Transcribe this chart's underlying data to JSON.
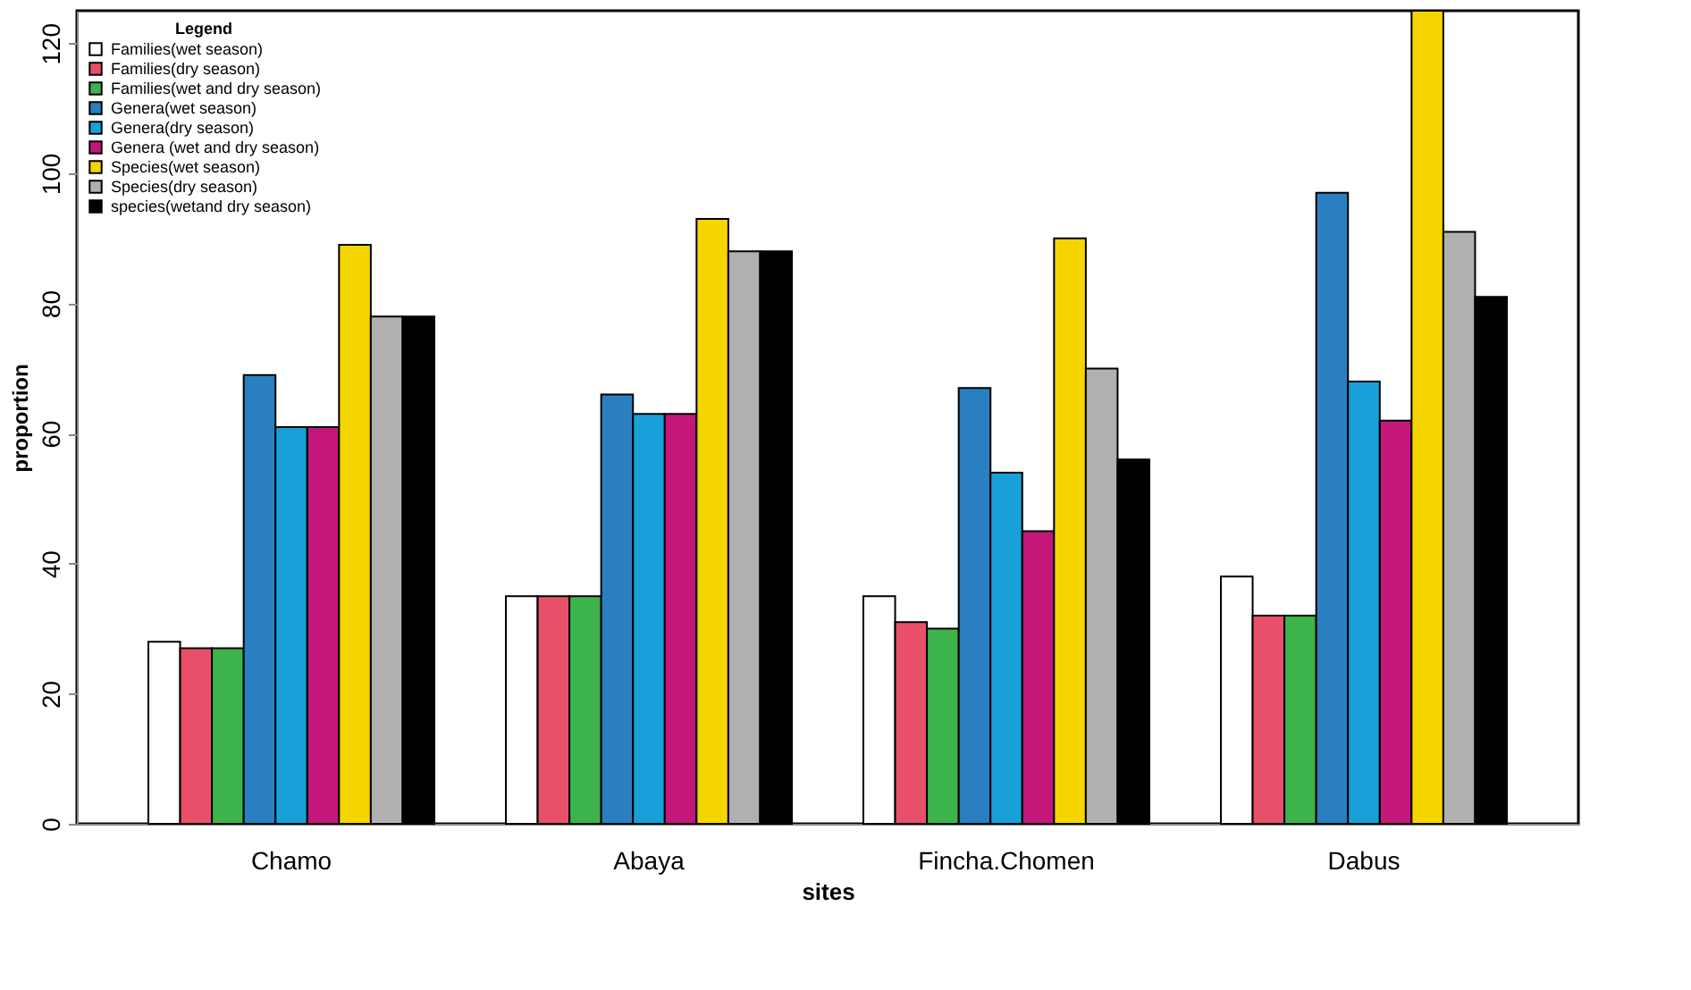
{
  "chart_data": {
    "type": "bar",
    "xlabel": "sites",
    "ylabel": "proportion",
    "legend_title": "Legend",
    "legend": "top left",
    "grid": false,
    "categories": [
      "Chamo",
      "Abaya",
      "Fincha.Chomen",
      "Dabus"
    ],
    "ylim": [
      0,
      125
    ],
    "yticks": [
      0,
      20,
      40,
      60,
      80,
      100,
      120
    ],
    "series": [
      {
        "name": "Families(wet season)",
        "color": "#ffffff",
        "values": [
          28,
          35,
          35,
          38
        ]
      },
      {
        "name": "Families(dry season)",
        "color": "#e8506a",
        "values": [
          27,
          35,
          31,
          32
        ]
      },
      {
        "name": "Families(wet and dry season)",
        "color": "#3cb44b",
        "values": [
          27,
          35,
          30,
          32
        ]
      },
      {
        "name": "Genera(wet season)",
        "color": "#2a7fc0",
        "values": [
          69,
          66,
          67,
          97
        ]
      },
      {
        "name": "Genera(dry season)",
        "color": "#1aa0d8",
        "values": [
          61,
          63,
          54,
          68
        ]
      },
      {
        "name": "Genera (wet and dry season)",
        "color": "#c4177a",
        "values": [
          61,
          63,
          45,
          62
        ]
      },
      {
        "name": "Species(wet season)",
        "color": "#f5d500",
        "values": [
          89,
          93,
          90,
          125
        ]
      },
      {
        "name": "Species(dry season)",
        "color": "#b0b0b0",
        "values": [
          78,
          88,
          70,
          91
        ]
      },
      {
        "name": "species(wetand dry season)",
        "color": "#000000",
        "values": [
          78,
          88,
          56,
          81
        ]
      }
    ]
  }
}
